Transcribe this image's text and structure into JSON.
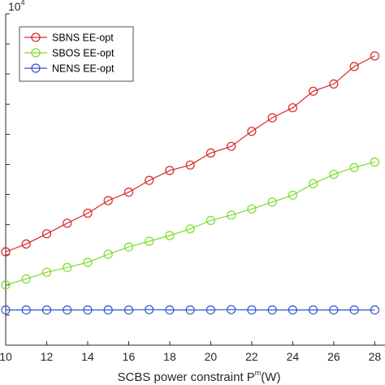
{
  "chart_data": {
    "type": "line",
    "xlabel": {
      "main": "SCBS power constraint P",
      "sup": "m",
      "suffix": "(W)"
    },
    "ylabel": "",
    "y_multiplier": {
      "base": "10",
      "exponent": "4"
    },
    "xlim": [
      10,
      28.5
    ],
    "ylim": [
      0,
      1.1
    ],
    "x_ticks": [
      10,
      12,
      14,
      16,
      18,
      20,
      22,
      24,
      26,
      28
    ],
    "x_tick_labels": [
      "10",
      "12",
      "14",
      "16",
      "18",
      "20",
      "22",
      "24",
      "26",
      "28"
    ],
    "y_ticks": [
      0.1,
      0.2,
      0.3,
      0.4,
      0.5,
      0.6,
      0.7,
      0.8,
      0.9,
      1.0,
      1.1
    ],
    "x": [
      10,
      11,
      12,
      13,
      14,
      15,
      16,
      17,
      18,
      19,
      20,
      21,
      22,
      23,
      24,
      25,
      26,
      27,
      28
    ],
    "series": [
      {
        "name": "SBNS EE-opt",
        "color": "#d62728",
        "values": [
          0.31,
          0.336,
          0.37,
          0.405,
          0.438,
          0.48,
          0.508,
          0.547,
          0.58,
          0.598,
          0.638,
          0.66,
          0.71,
          0.755,
          0.788,
          0.843,
          0.867,
          0.925,
          0.96
        ]
      },
      {
        "name": "SBOS EE-opt",
        "color": "#7cdc2c",
        "values": [
          0.2,
          0.22,
          0.242,
          0.258,
          0.275,
          0.302,
          0.326,
          0.345,
          0.364,
          0.386,
          0.414,
          0.432,
          0.452,
          0.475,
          0.498,
          0.536,
          0.567,
          0.59,
          0.608
        ]
      },
      {
        "name": "NENS EE-opt",
        "color": "#3455c8",
        "values": [
          0.117,
          0.117,
          0.117,
          0.117,
          0.117,
          0.117,
          0.117,
          0.118,
          0.117,
          0.117,
          0.117,
          0.118,
          0.117,
          0.117,
          0.117,
          0.117,
          0.117,
          0.117,
          0.117
        ]
      }
    ],
    "legend_position": "top-left",
    "grid": false
  }
}
